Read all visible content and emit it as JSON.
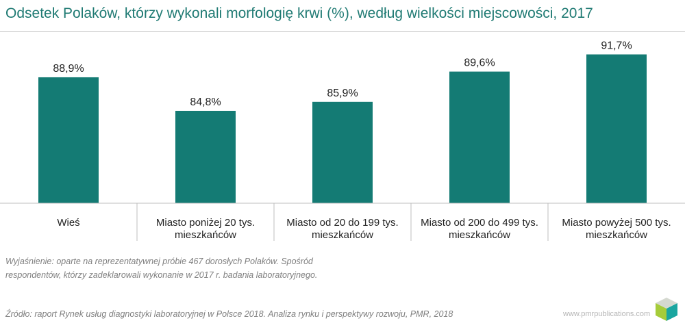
{
  "title": "Odsetek Polaków, którzy wykonali morfologię krwi (%), według wielkości miejscowości, 2017",
  "note": "Wyjaśnienie: oparte na reprezentatywnej próbie 467 dorosłych Polaków. Spośród respondentów, którzy zadeklarowali wykonanie w 2017 r. badania laboratoryjnego.",
  "source": "Źródło: raport Rynek usług diagnostyki laboratoryjnej w Polsce 2018. Analiza rynku i perspektywy rozwoju, PMR, 2018",
  "brand": "www.pmrpublications.com",
  "colors": {
    "bar": "#147b74",
    "title": "#1f7a73",
    "axis": "#bfbfbf",
    "text": "#222222"
  },
  "chart_data": {
    "type": "bar",
    "categories": [
      [
        "Wieś"
      ],
      [
        "Miasto poniżej 20 tys.",
        "mieszkańców"
      ],
      [
        "Miasto od 20 do 199 tys.",
        "mieszkańców"
      ],
      [
        "Miasto od 200 do 499 tys.",
        "mieszkańców"
      ],
      [
        "Miasto powyżej 500 tys.",
        "mieszkańców"
      ]
    ],
    "values": [
      88.9,
      84.8,
      85.9,
      89.6,
      91.7
    ],
    "value_labels": [
      "88,9%",
      "84,8%",
      "85,9%",
      "89,6%",
      "91,7%"
    ],
    "title": "Odsetek Polaków, którzy wykonali morfologię krwi (%), według wielkości miejscowości, 2017",
    "xlabel": "",
    "ylabel": "",
    "grid": false,
    "legend": "none"
  }
}
